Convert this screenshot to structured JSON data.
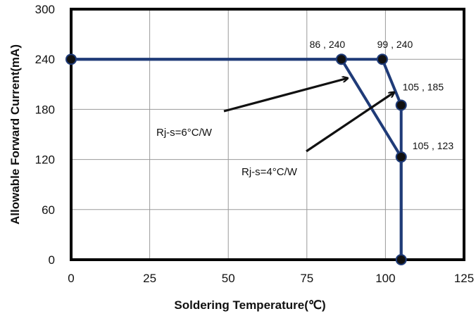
{
  "chart_data": {
    "type": "line",
    "title": "",
    "xlabel": "Soldering Temperature(℃)",
    "ylabel": "Allowable Forward Current(mA)",
    "xlim": [
      0,
      125
    ],
    "ylim": [
      0,
      300
    ],
    "x_ticks": [
      0,
      25,
      50,
      75,
      100,
      125
    ],
    "y_ticks": [
      0,
      60,
      120,
      180,
      240,
      300
    ],
    "grid": true,
    "legend": "none",
    "line_color": "#1f3b78",
    "series": [
      {
        "points": [
          {
            "x": 0,
            "y": 240
          },
          {
            "x": 86,
            "y": 240
          },
          {
            "x": 105,
            "y": 123
          },
          {
            "x": 105,
            "y": 0
          }
        ]
      },
      {
        "points": [
          {
            "x": 0,
            "y": 240
          },
          {
            "x": 99,
            "y": 240
          },
          {
            "x": 105,
            "y": 185
          },
          {
            "x": 105,
            "y": 0
          }
        ]
      }
    ],
    "data_labels": [
      {
        "text": "86 , 240",
        "x": 86,
        "y": 240
      },
      {
        "text": "99 , 240",
        "x": 99,
        "y": 240
      },
      {
        "text": "105 , 185",
        "x": 105,
        "y": 185
      },
      {
        "text": "105 , 123",
        "x": 105,
        "y": 123
      }
    ],
    "annotations": [
      {
        "text": "Rj-s=6°C/W",
        "target": {
          "x": 86,
          "y": 240
        }
      },
      {
        "text": "Rj-s=4°C/W",
        "target": {
          "x": 99,
          "y": 240
        }
      }
    ]
  }
}
